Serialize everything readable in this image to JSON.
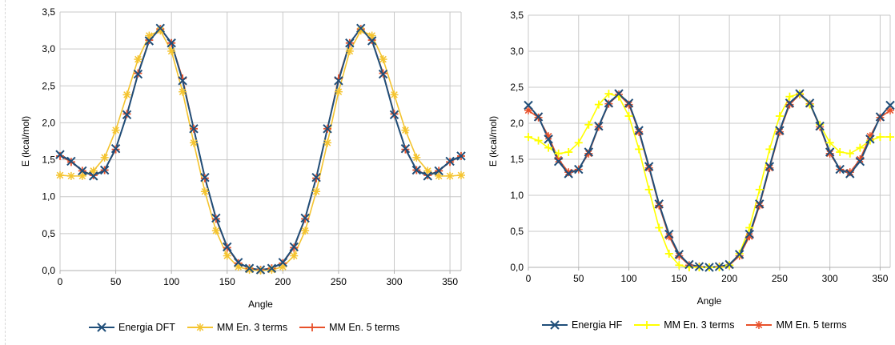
{
  "chart_data": [
    {
      "type": "line",
      "title": "",
      "xlabel": "Angle",
      "ylabel": "E (kcal/mol)",
      "xlim": [
        0,
        360
      ],
      "ylim": [
        0,
        3.5
      ],
      "xticks": [
        "0",
        "50",
        "100",
        "150",
        "200",
        "250",
        "300",
        "350"
      ],
      "yticks": [
        "0,0",
        "0,5",
        "1,0",
        "1,5",
        "2,0",
        "2,5",
        "3,0",
        "3,5"
      ],
      "grid": true,
      "legend_position": "bottom",
      "x": [
        0,
        10,
        20,
        30,
        40,
        50,
        60,
        70,
        80,
        90,
        100,
        110,
        120,
        130,
        140,
        150,
        160,
        170,
        180,
        190,
        200,
        210,
        220,
        230,
        240,
        250,
        260,
        270,
        280,
        290,
        300,
        310,
        320,
        330,
        340,
        350,
        360
      ],
      "series": [
        {
          "name": "Energia DFT",
          "color": "#1f4e79",
          "marker": "x",
          "values": [
            1.57,
            1.48,
            1.35,
            1.28,
            1.36,
            1.65,
            2.11,
            2.66,
            3.11,
            3.28,
            3.08,
            2.57,
            1.92,
            1.26,
            0.71,
            0.32,
            0.11,
            0.03,
            0.01,
            0.03,
            0.11,
            0.32,
            0.71,
            1.26,
            1.92,
            2.57,
            3.08,
            3.28,
            3.11,
            2.66,
            2.11,
            1.65,
            1.36,
            1.28,
            1.35,
            1.48,
            1.55
          ]
        },
        {
          "name": "MM En. 3 terms",
          "color": "#f4c430",
          "marker": "asterisk",
          "values": [
            1.29,
            1.28,
            1.28,
            1.35,
            1.53,
            1.9,
            2.38,
            2.86,
            3.18,
            3.25,
            2.97,
            2.42,
            1.73,
            1.07,
            0.54,
            0.2,
            0.05,
            0.01,
            0.0,
            0.01,
            0.05,
            0.2,
            0.54,
            1.07,
            1.73,
            2.42,
            2.97,
            3.25,
            3.18,
            2.86,
            2.38,
            1.9,
            1.53,
            1.35,
            1.28,
            1.28,
            1.29
          ]
        },
        {
          "name": "MM En. 5 terms",
          "color": "#e8512a",
          "marker": "plus",
          "values": [
            1.55,
            1.47,
            1.35,
            1.29,
            1.36,
            1.64,
            2.12,
            2.67,
            3.12,
            3.27,
            3.08,
            2.6,
            1.92,
            1.25,
            0.7,
            0.31,
            0.1,
            0.03,
            0.01,
            0.03,
            0.1,
            0.31,
            0.7,
            1.25,
            1.92,
            2.6,
            3.08,
            3.27,
            3.12,
            2.67,
            2.12,
            1.64,
            1.36,
            1.29,
            1.35,
            1.47,
            1.55
          ]
        }
      ]
    },
    {
      "type": "line",
      "title": "",
      "xlabel": "Angle",
      "ylabel": "E (kcal/mol)",
      "xlim": [
        0,
        360
      ],
      "ylim": [
        0,
        3.5
      ],
      "xticks": [
        "0",
        "50",
        "100",
        "150",
        "200",
        "250",
        "300",
        "350"
      ],
      "yticks": [
        "0,0",
        "0,5",
        "1,0",
        "1,5",
        "2,0",
        "2,5",
        "3,0",
        "3,5"
      ],
      "grid": true,
      "legend_position": "bottom",
      "x": [
        0,
        10,
        20,
        30,
        40,
        50,
        60,
        70,
        80,
        90,
        100,
        110,
        120,
        130,
        140,
        150,
        160,
        170,
        180,
        190,
        200,
        210,
        220,
        230,
        240,
        250,
        260,
        270,
        280,
        290,
        300,
        310,
        320,
        330,
        340,
        350,
        360
      ],
      "series": [
        {
          "name": "Energia HF",
          "color": "#1f4e79",
          "marker": "x",
          "values": [
            2.25,
            2.09,
            1.78,
            1.47,
            1.3,
            1.36,
            1.6,
            1.96,
            2.28,
            2.41,
            2.28,
            1.9,
            1.4,
            0.88,
            0.46,
            0.18,
            0.04,
            0.01,
            0.0,
            0.01,
            0.04,
            0.18,
            0.46,
            0.88,
            1.4,
            1.9,
            2.28,
            2.41,
            2.28,
            1.96,
            1.6,
            1.36,
            1.3,
            1.47,
            1.78,
            2.09,
            2.25
          ]
        },
        {
          "name": "MM En. 3 terms",
          "color": "#ffff00",
          "marker": "plus",
          "values": [
            1.81,
            1.76,
            1.66,
            1.58,
            1.6,
            1.73,
            1.98,
            2.26,
            2.41,
            2.37,
            2.1,
            1.64,
            1.08,
            0.55,
            0.19,
            0.03,
            0.0,
            0.0,
            0.0,
            0.0,
            0.03,
            0.19,
            0.55,
            1.08,
            1.64,
            2.1,
            2.37,
            2.41,
            2.26,
            1.98,
            1.73,
            1.6,
            1.58,
            1.66,
            1.76,
            1.81,
            1.81
          ]
        },
        {
          "name": "MM En. 5 terms",
          "color": "#e8512a",
          "marker": "asterisk",
          "values": [
            2.18,
            2.08,
            1.82,
            1.5,
            1.32,
            1.36,
            1.58,
            1.95,
            2.27,
            2.4,
            2.26,
            1.88,
            1.38,
            0.86,
            0.43,
            0.16,
            0.03,
            0.01,
            0.0,
            0.01,
            0.03,
            0.16,
            0.43,
            0.86,
            1.38,
            1.88,
            2.26,
            2.4,
            2.27,
            1.95,
            1.58,
            1.36,
            1.32,
            1.5,
            1.82,
            2.08,
            2.18
          ]
        }
      ]
    }
  ]
}
